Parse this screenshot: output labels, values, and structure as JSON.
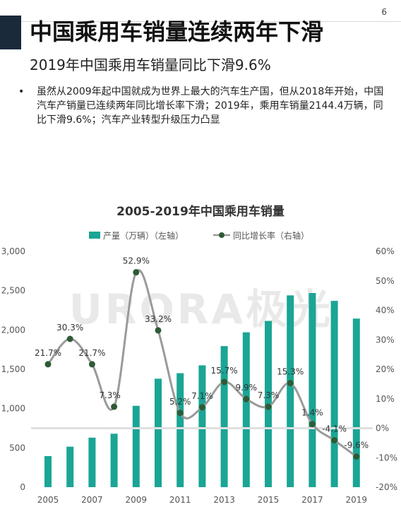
{
  "page": {
    "number": "6"
  },
  "header": {
    "title": "中国乘用车销量连续两年下滑"
  },
  "subheader": {
    "text": "2019年中国乘用车销量同比下滑9.6%"
  },
  "bullets": [
    {
      "marker": "•",
      "text": "虽然从2009年起中国就成为世界上最大的汽车生产国，但从2018年开始，中国汽车产销量已连续两年同比增长率下滑；2019年，乘用车销量2144.4万辆，同比下滑9.6%；汽车产业转型升级压力凸显"
    }
  ],
  "watermark": {
    "text": "URORA极光"
  },
  "chart_data": {
    "type": "bar",
    "title": "2005-2019年中国乘用车销量",
    "categories": [
      "2005",
      "2006",
      "2007",
      "2008",
      "2009",
      "2010",
      "2011",
      "2012",
      "2013",
      "2014",
      "2015",
      "2016",
      "2017",
      "2018",
      "2019"
    ],
    "x_tick_labels": [
      "2005",
      "2007",
      "2009",
      "2011",
      "2013",
      "2015",
      "2017",
      "2019"
    ],
    "series": [
      {
        "name": "产量（万辆）（左轴）",
        "type": "bar",
        "axis": "left",
        "color": "#1aa595",
        "values": [
          395,
          515,
          630,
          680,
          1035,
          1380,
          1450,
          1550,
          1795,
          1970,
          2115,
          2440,
          2470,
          2370,
          2144.4
        ]
      },
      {
        "name": "同比增长率（右轴）",
        "type": "line",
        "axis": "right",
        "color": "#9a9a9a",
        "marker_color": "#2e5b35",
        "values": [
          21.7,
          30.3,
          21.7,
          7.3,
          52.9,
          33.2,
          5.2,
          7.1,
          15.7,
          9.9,
          7.3,
          15.3,
          1.4,
          -4.1,
          -9.6
        ],
        "labels": [
          "21.7%",
          "30.3%",
          "21.7%",
          "7.3%",
          "52.9%",
          "33.2%",
          "5.2%",
          "7.1%",
          "15.7%",
          "9.9%",
          "7.3%",
          "15.3%",
          "1.4%",
          "-4.1%",
          "-9.6%"
        ]
      }
    ],
    "y_left": {
      "range": [
        0,
        3000
      ],
      "ticks": [
        "0",
        "500",
        "1,000",
        "1,500",
        "2,000",
        "2,500",
        "3,000"
      ]
    },
    "y_right": {
      "range": [
        -20,
        60
      ],
      "ticks": [
        "-20%",
        "-10%",
        "0%",
        "10%",
        "20%",
        "30%",
        "40%",
        "50%",
        "60%"
      ]
    },
    "grid": false,
    "legend_position": "top"
  }
}
